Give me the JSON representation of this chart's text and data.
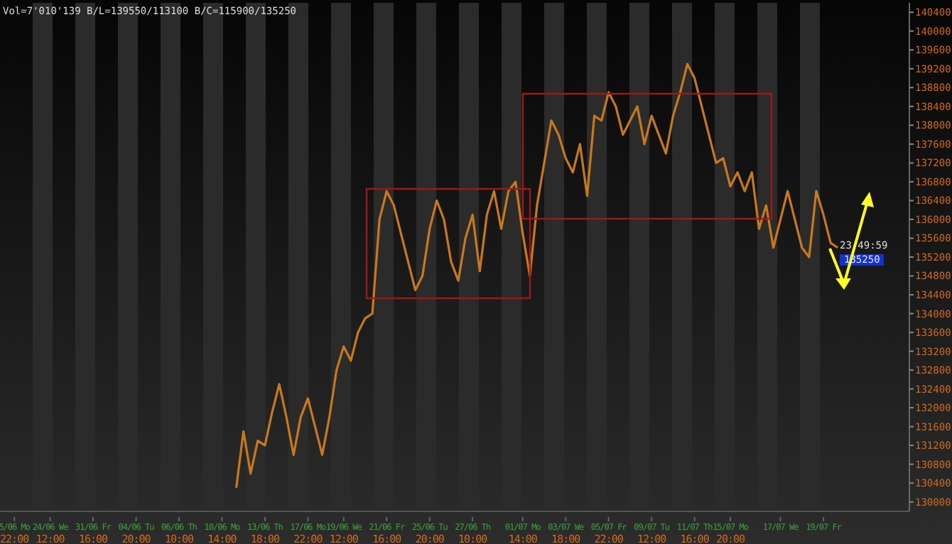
{
  "chart_data": {
    "type": "line",
    "annotations": [
      "Vol=7'010'139 B/L=139550/113100 B/C=115900/135250",
      "23:49:59",
      "135250"
    ],
    "categories": [
      null,
      null,
      "5/06 Mo\n22:00",
      null,
      null,
      null,
      null,
      "24/06 We\n12:00",
      null,
      null,
      null,
      null,
      null,
      "31/06 Fr\n16:00",
      null,
      null,
      null,
      null,
      null,
      "04/06 Tu\n20:00",
      null,
      null,
      null,
      null,
      null,
      "06/06 Th\n10:00",
      null,
      null,
      null,
      null,
      null,
      "10/06 Mo\n14:00",
      null,
      null,
      null,
      null,
      null,
      "13/06 Th\n18:00",
      null,
      null,
      null,
      null,
      null,
      "17/06 Mo\n22:00",
      null,
      null,
      null,
      null,
      "19/06 We\n12:00",
      null,
      null,
      null,
      null,
      null,
      "21/06 Fr\n16:00",
      null,
      null,
      null,
      null,
      null,
      "25/06 Tu\n20:00",
      null,
      null,
      null,
      null,
      null,
      "27/06 Th\n10:00",
      null,
      null,
      null,
      null,
      null,
      null,
      "01/07 Mo\n14:00",
      null,
      null,
      null,
      null,
      null,
      "03/07 We\n18:00",
      null,
      null,
      null,
      null,
      null,
      "05/07 Fr\n22:00",
      null,
      null,
      null,
      null,
      null,
      "09/07 Tu\n12:00",
      null,
      null,
      null,
      null,
      null,
      "11/07 Th\n16:00",
      null,
      null,
      null,
      null,
      "15/07 Mo\n20:00",
      null,
      null,
      null,
      null,
      null,
      null,
      "17/07 We",
      null,
      null,
      null,
      null,
      null,
      "19/07 Fr",
      null,
      null,
      null,
      null,
      null,
      null,
      null,
      null,
      null,
      null,
      null,
      null
    ],
    "series": [
      {
        "color": "#c8781e",
        "values": [
          null,
          null,
          null,
          null,
          null,
          null,
          null,
          null,
          null,
          null,
          null,
          null,
          null,
          null,
          null,
          null,
          null,
          null,
          null,
          null,
          null,
          null,
          null,
          null,
          null,
          null,
          null,
          null,
          null,
          null,
          null,
          null,
          null,
          130300,
          131500,
          130600,
          131300,
          131200,
          131900,
          132500,
          131800,
          131000,
          131800,
          132200,
          131600,
          131000,
          131800,
          132800,
          133300,
          133000,
          133600,
          133900,
          134000,
          136000,
          136600,
          136300,
          135700,
          135100,
          134500,
          134800,
          135800,
          136400,
          136000,
          135100,
          134700,
          135600,
          136100,
          134900,
          136100,
          136600,
          135800,
          136600,
          136800,
          135700,
          134800,
          136300,
          137200,
          138100,
          137800,
          137300,
          137000,
          137600,
          136500,
          138200,
          138100,
          138700,
          138400,
          137800,
          138100,
          138400,
          137600,
          138200,
          137800,
          137400,
          138200,
          138700,
          139300,
          139000,
          138400,
          137800,
          137200,
          137300,
          136700,
          137000,
          136600,
          137000,
          135800,
          136300,
          135400,
          136000,
          136600,
          136000,
          135400,
          135200,
          136600,
          136100,
          135500,
          135400,
          null,
          null,
          null,
          null,
          null,
          null,
          null,
          null,
          null,
          null
        ]
      }
    ],
    "ylim": [
      129800,
      140600
    ],
    "yticks": [
      130000,
      130400,
      130800,
      131200,
      131600,
      132000,
      132400,
      132800,
      133200,
      133600,
      134000,
      134400,
      134800,
      135200,
      135600,
      136000,
      136400,
      136800,
      137200,
      137600,
      138000,
      138400,
      138800,
      139200,
      139600,
      140000,
      140400
    ]
  }
}
